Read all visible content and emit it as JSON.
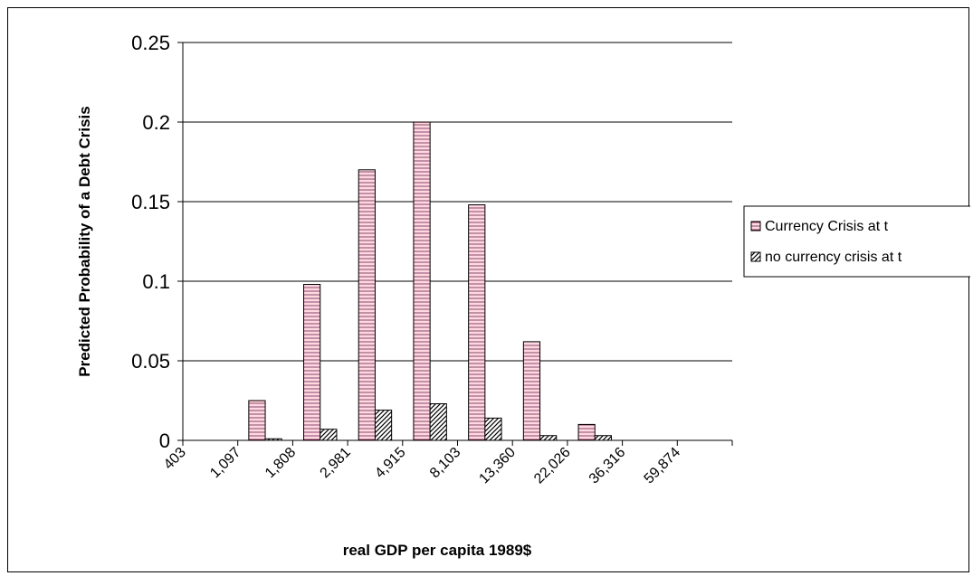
{
  "chart_data": {
    "type": "bar",
    "title": "",
    "xlabel": "real GDP per capita 1989$",
    "ylabel": "Predicted Probability of a Debt Crisis",
    "categories": [
      "403",
      "1,097",
      "1,808",
      "2,981",
      "4,915",
      "8,103",
      "13,360",
      "22,026",
      "36,316",
      "59,874"
    ],
    "series": [
      {
        "name": "Currency Crisis at t",
        "values": [
          0,
          0.025,
          0.098,
          0.17,
          0.2,
          0.148,
          0.062,
          0.01,
          0,
          0
        ]
      },
      {
        "name": "no currency crisis at t",
        "values": [
          0,
          0.001,
          0.007,
          0.019,
          0.023,
          0.014,
          0.003,
          0.003,
          0,
          0
        ]
      }
    ],
    "ylim": [
      0,
      0.25
    ],
    "yticks": [
      "0",
      "0.05",
      "0.1",
      "0.15",
      "0.2",
      "0.25"
    ],
    "grid": true,
    "legend_position": "right",
    "colors": {
      "series1_fill": "#ffc8d2",
      "series1_line": "#800040",
      "series2_line": "#000000"
    }
  }
}
